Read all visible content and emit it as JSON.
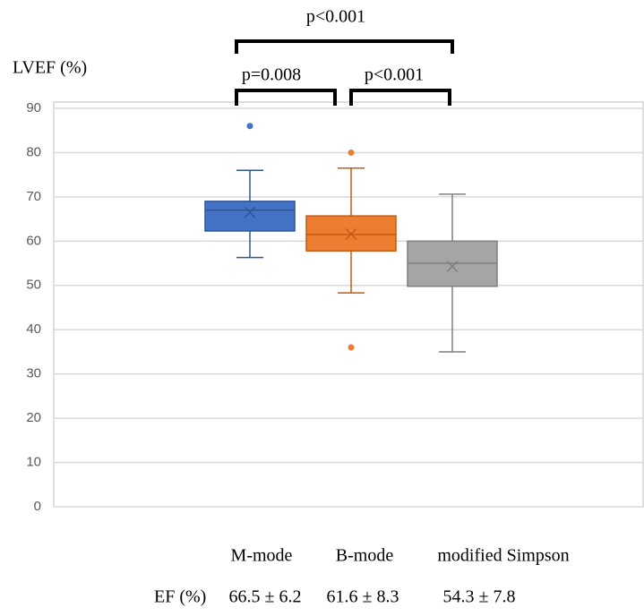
{
  "chart_data": {
    "type": "box",
    "y_label": "LVEF (%)",
    "ylim": [
      0,
      90
    ],
    "yticks": [
      0,
      10,
      20,
      30,
      40,
      50,
      60,
      70,
      80,
      90
    ],
    "grid": true,
    "series": [
      {
        "name": "M-mode",
        "color": "#4472c4",
        "whisker_low": 56.3,
        "q1": 62.3,
        "median": 67,
        "q3": 69,
        "whisker_high": 76,
        "mean": 66.5,
        "outliers": [
          86
        ]
      },
      {
        "name": "B-mode",
        "color": "#ed7d31",
        "whisker_low": 48.3,
        "q1": 57.8,
        "median": 61.5,
        "q3": 65.7,
        "whisker_high": 76.5,
        "mean": 61.6,
        "outliers": [
          80,
          36
        ]
      },
      {
        "name": "modified Simpson",
        "color": "#a5a5a5",
        "whisker_low": 35,
        "q1": 49.8,
        "median": 55,
        "q3": 60,
        "whisker_high": 70.6,
        "mean": 54.3,
        "outliers": []
      }
    ],
    "comparisons": [
      {
        "between": [
          "M-mode",
          "B-mode"
        ],
        "label": "p=0.008"
      },
      {
        "between": [
          "B-mode",
          "modified Simpson"
        ],
        "label": "p<0.001"
      },
      {
        "between": [
          "M-mode",
          "modified Simpson"
        ],
        "label": "p<0.001"
      }
    ],
    "summary_title": "EF (%)",
    "summary_labels": [
      "66.5 ± 6.2",
      "61.6 ± 8.3",
      "54.3 ± 7.8"
    ]
  }
}
